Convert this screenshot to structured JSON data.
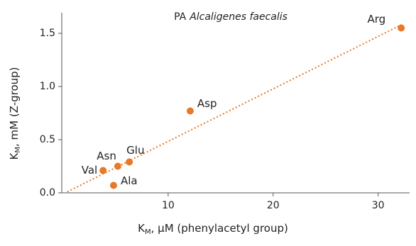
{
  "chart_data": {
    "type": "scatter",
    "title_parts": [
      "PA",
      "Alcaligenes faecalis"
    ],
    "x_label_parts": [
      "K",
      "M",
      ", μM (phenylacetyl group)"
    ],
    "y_label_parts": [
      "K",
      "M",
      ", mM (Z-group)"
    ],
    "labels": [
      "Arg",
      "Asp",
      "Glu",
      "Asn",
      "Val",
      "Ala"
    ],
    "x": [
      32.2,
      12.1,
      6.3,
      5.2,
      3.8,
      4.8
    ],
    "values": [
      1.55,
      0.77,
      0.29,
      0.25,
      0.21,
      0.07
    ],
    "color": "#e8782a",
    "trendline": {
      "x": [
        0.4,
        32.2
      ],
      "values": [
        0.01,
        1.58
      ],
      "color": "#e8782a"
    },
    "xlim": [
      0,
      33
    ],
    "ylim": [
      0,
      1.7
    ],
    "xticks": [
      10,
      20,
      30
    ],
    "yticks": [
      {
        "value": 0,
        "label": "0.0"
      },
      0.5,
      {
        "value": 1,
        "label": "1.0"
      },
      1.5
    ]
  }
}
